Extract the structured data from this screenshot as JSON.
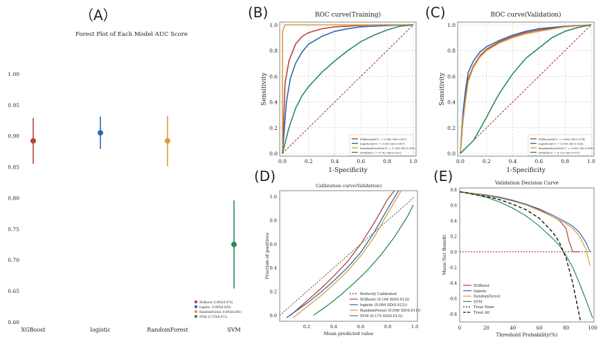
{
  "panels": {
    "A": "（A）",
    "B": "(B)",
    "C": "(C)",
    "D": "(D)",
    "E": "(E)"
  },
  "colors": {
    "xgboost": "#b0463a",
    "logistic": "#2a67b3",
    "randomforest": "#e09a3a",
    "svm": "#2a8a5a",
    "diagonal": "#b22222",
    "grid": "#cccccc"
  },
  "chart_data": [
    {
      "id": "A",
      "type": "scatter",
      "title": "Forest Plot of Each Model AUC Score",
      "xlabel": "",
      "ylabel": "",
      "ylim": [
        0.6,
        1.03
      ],
      "yticks": [
        "0.60",
        "0.65",
        "0.70",
        "0.75",
        "0.80",
        "0.85",
        "0.90",
        "0.95",
        "1.00"
      ],
      "categories": [
        "XGBoost",
        "logistic",
        "RandomForest",
        "SVM"
      ],
      "points": [
        {
          "name": "XGBoost",
          "value": 0.892,
          "low": 0.855,
          "high": 0.929
        },
        {
          "name": "logistic",
          "value": 0.905,
          "low": 0.879,
          "high": 0.931
        },
        {
          "name": "RandomForest",
          "value": 0.892,
          "low": 0.851,
          "high": 0.932
        },
        {
          "name": "SVM",
          "value": 0.725,
          "low": 0.654,
          "high": 0.796
        }
      ],
      "legend": [
        "XGBoost: 0.892(0.074)",
        "logistic: 0.905(0.026)",
        "RandomForest: 0.892(0.081)",
        "SVM: 0.725(0.071)"
      ]
    },
    {
      "id": "B",
      "type": "line",
      "title": "ROC curve(Training)",
      "xlabel": "1-Specificity",
      "ylabel": "Sensitivity",
      "xlim": [
        0,
        1
      ],
      "ylim": [
        0,
        1
      ],
      "ticks": [
        "0.0",
        "0.2",
        "0.4",
        "0.6",
        "0.8",
        "1.0"
      ],
      "series": [
        {
          "name": "XGBoost",
          "x": [
            0,
            0.02,
            0.05,
            0.1,
            0.15,
            0.2,
            0.3,
            0.4,
            0.5,
            0.7,
            1
          ],
          "y": [
            0,
            0.55,
            0.72,
            0.85,
            0.91,
            0.94,
            0.97,
            0.985,
            0.99,
            1,
            1
          ]
        },
        {
          "name": "logistic",
          "x": [
            0,
            0.03,
            0.06,
            0.1,
            0.15,
            0.2,
            0.3,
            0.4,
            0.5,
            0.6,
            0.8,
            1
          ],
          "y": [
            0,
            0.4,
            0.58,
            0.7,
            0.79,
            0.85,
            0.91,
            0.95,
            0.97,
            0.985,
            0.995,
            1
          ]
        },
        {
          "name": "RandomForest",
          "x": [
            0,
            0,
            0.02,
            1
          ],
          "y": [
            0,
            0.95,
            1,
            1
          ]
        },
        {
          "name": "SVM",
          "x": [
            0,
            0.05,
            0.1,
            0.15,
            0.2,
            0.3,
            0.4,
            0.5,
            0.6,
            0.7,
            0.8,
            0.9,
            1
          ],
          "y": [
            0,
            0.2,
            0.35,
            0.45,
            0.52,
            0.63,
            0.72,
            0.8,
            0.87,
            0.92,
            0.96,
            0.99,
            1
          ]
        }
      ],
      "legend": [
        "XGBoost(AUC = 0.942 SD:0.007)",
        "logistic(AUC = 0.905 SD:0.007)",
        "RandomForest(AUC = 1.000 SD:0.000)",
        "SVM(AUC = 0.752 SD:0.022)"
      ]
    },
    {
      "id": "C",
      "type": "line",
      "title": "ROC curve(Validation)",
      "xlabel": "1-Specificity",
      "ylabel": "Sensitivity",
      "xlim": [
        0,
        1
      ],
      "ylim": [
        0,
        1
      ],
      "ticks": [
        "0.0",
        "0.2",
        "0.4",
        "0.6",
        "0.8",
        "1.0"
      ],
      "series": [
        {
          "name": "XGBoost",
          "x": [
            0,
            0.02,
            0.04,
            0.06,
            0.1,
            0.15,
            0.2,
            0.3,
            0.4,
            0.5,
            0.6,
            0.8,
            1
          ],
          "y": [
            0,
            0.28,
            0.45,
            0.58,
            0.68,
            0.76,
            0.81,
            0.87,
            0.91,
            0.94,
            0.96,
            0.985,
            1
          ]
        },
        {
          "name": "logistic",
          "x": [
            0,
            0.02,
            0.04,
            0.06,
            0.1,
            0.15,
            0.2,
            0.3,
            0.4,
            0.5,
            0.6,
            0.8,
            1
          ],
          "y": [
            0,
            0.32,
            0.5,
            0.63,
            0.72,
            0.79,
            0.83,
            0.88,
            0.92,
            0.95,
            0.97,
            0.99,
            1
          ]
        },
        {
          "name": "RandomForest",
          "x": [
            0,
            0.02,
            0.04,
            0.06,
            0.1,
            0.15,
            0.2,
            0.3,
            0.4,
            0.5,
            0.6,
            0.8,
            1
          ],
          "y": [
            0,
            0.25,
            0.42,
            0.56,
            0.67,
            0.75,
            0.8,
            0.86,
            0.9,
            0.93,
            0.95,
            0.985,
            1
          ]
        },
        {
          "name": "SVM",
          "x": [
            0,
            0.1,
            0.2,
            0.25,
            0.3,
            0.4,
            0.5,
            0.6,
            0.7,
            0.8,
            0.9,
            1
          ],
          "y": [
            0,
            0.1,
            0.28,
            0.38,
            0.47,
            0.62,
            0.74,
            0.82,
            0.9,
            0.95,
            0.98,
            1
          ]
        }
      ],
      "legend": [
        "XGBoost(AUC = 0.892 SD:0.074)",
        "logistic(AUC = 0.905 SD:0.026)",
        "RandomForest(AUC = 0.892 SD:0.081)",
        "SVM(AUC = 0.725 SD:0.071)"
      ]
    },
    {
      "id": "D",
      "type": "line",
      "title": "Calibration curve(Validation)",
      "xlabel": "Mean predicted value",
      "ylabel": "Fraction of positives",
      "xlim": [
        0,
        1.02
      ],
      "ylim": [
        -0.05,
        1.05
      ],
      "xticks": [
        "0.2",
        "0.4",
        "0.6",
        "0.8",
        "1.0"
      ],
      "yticks": [
        "0.0",
        "0.2",
        "0.4",
        "0.6",
        "0.8",
        "1.0"
      ],
      "series": [
        {
          "name": "Perfectly Calibrated",
          "x": [
            0,
            1
          ],
          "y": [
            0,
            1
          ]
        },
        {
          "name": "XGBoost",
          "x": [
            0.08,
            0.2,
            0.3,
            0.4,
            0.5,
            0.6,
            0.7,
            0.8,
            0.85
          ],
          "y": [
            0,
            0.12,
            0.22,
            0.33,
            0.45,
            0.6,
            0.78,
            0.98,
            1.05
          ]
        },
        {
          "name": "logistic",
          "x": [
            0.05,
            0.2,
            0.3,
            0.4,
            0.5,
            0.6,
            0.7,
            0.8,
            0.88
          ],
          "y": [
            -0.02,
            0.1,
            0.19,
            0.29,
            0.4,
            0.53,
            0.7,
            0.9,
            1.05
          ]
        },
        {
          "name": "RandomForest",
          "x": [
            0.1,
            0.2,
            0.3,
            0.4,
            0.5,
            0.6,
            0.7,
            0.8,
            0.9
          ],
          "y": [
            -0.02,
            0.07,
            0.16,
            0.26,
            0.37,
            0.5,
            0.66,
            0.86,
            1.05
          ]
        },
        {
          "name": "SVM",
          "x": [
            0.25,
            0.35,
            0.45,
            0.55,
            0.65,
            0.75,
            0.85,
            0.95,
            0.99
          ],
          "y": [
            0,
            0.08,
            0.17,
            0.27,
            0.38,
            0.51,
            0.66,
            0.84,
            0.93
          ]
        }
      ],
      "legend": [
        "Perfectly Calibrated",
        "XGBoost (0.104 SD(0.013))",
        "logistic (0.094 SD(0.012))",
        "RandomForest (0.096 SD(0.011))",
        "SVM (0.175 SD(0.013))"
      ]
    },
    {
      "id": "E",
      "type": "line",
      "title": "Validation Decision Curve",
      "xlabel": "Threshold Probability(%)",
      "ylabel": "Mean Net Benefit",
      "xlim": [
        0,
        101
      ],
      "ylim": [
        -0.9,
        0.82
      ],
      "xticks": [
        "0",
        "20",
        "40",
        "60",
        "80",
        "100"
      ],
      "yticks": [
        "-0.8",
        "-0.6",
        "-0.4",
        "-0.2",
        "0.0",
        "0.2",
        "0.4",
        "0.6",
        "0.8"
      ],
      "series": [
        {
          "name": "XGBoost",
          "x": [
            0,
            10,
            20,
            30,
            40,
            50,
            60,
            70,
            75,
            80,
            82,
            85,
            90
          ],
          "y": [
            0.77,
            0.75,
            0.73,
            0.7,
            0.66,
            0.61,
            0.54,
            0.45,
            0.4,
            0.3,
            0.15,
            0,
            0
          ]
        },
        {
          "name": "logistic",
          "x": [
            0,
            10,
            20,
            30,
            40,
            50,
            60,
            70,
            80,
            85,
            90,
            95,
            98
          ],
          "y": [
            0.77,
            0.75,
            0.73,
            0.7,
            0.66,
            0.61,
            0.55,
            0.47,
            0.38,
            0.33,
            0.25,
            0.12,
            0
          ]
        },
        {
          "name": "RandomForest",
          "x": [
            0,
            10,
            20,
            30,
            40,
            50,
            60,
            70,
            80,
            85,
            90,
            95,
            98
          ],
          "y": [
            0.77,
            0.75,
            0.72,
            0.69,
            0.65,
            0.6,
            0.53,
            0.45,
            0.36,
            0.3,
            0.2,
            0.03,
            -0.18
          ]
        },
        {
          "name": "SVM",
          "x": [
            0,
            10,
            20,
            30,
            40,
            50,
            60,
            70,
            75,
            80,
            85,
            90,
            95,
            100
          ],
          "y": [
            0.77,
            0.74,
            0.7,
            0.64,
            0.56,
            0.46,
            0.33,
            0.17,
            0.08,
            -0.05,
            -0.2,
            -0.4,
            -0.62,
            -0.85
          ]
        },
        {
          "name": "Treat None",
          "x": [
            0,
            100
          ],
          "y": [
            0,
            0
          ]
        },
        {
          "name": "Treat All",
          "x": [
            0,
            10,
            20,
            30,
            40,
            50,
            60,
            70,
            75,
            80,
            85,
            88,
            91
          ],
          "y": [
            0.77,
            0.74,
            0.71,
            0.67,
            0.61,
            0.54,
            0.43,
            0.25,
            0.12,
            -0.08,
            -0.4,
            -0.65,
            -0.9
          ]
        }
      ],
      "legend": [
        "XGBoost",
        "logistic",
        "RandomForest",
        "SVM",
        "Treat None",
        "Treat All"
      ]
    }
  ]
}
